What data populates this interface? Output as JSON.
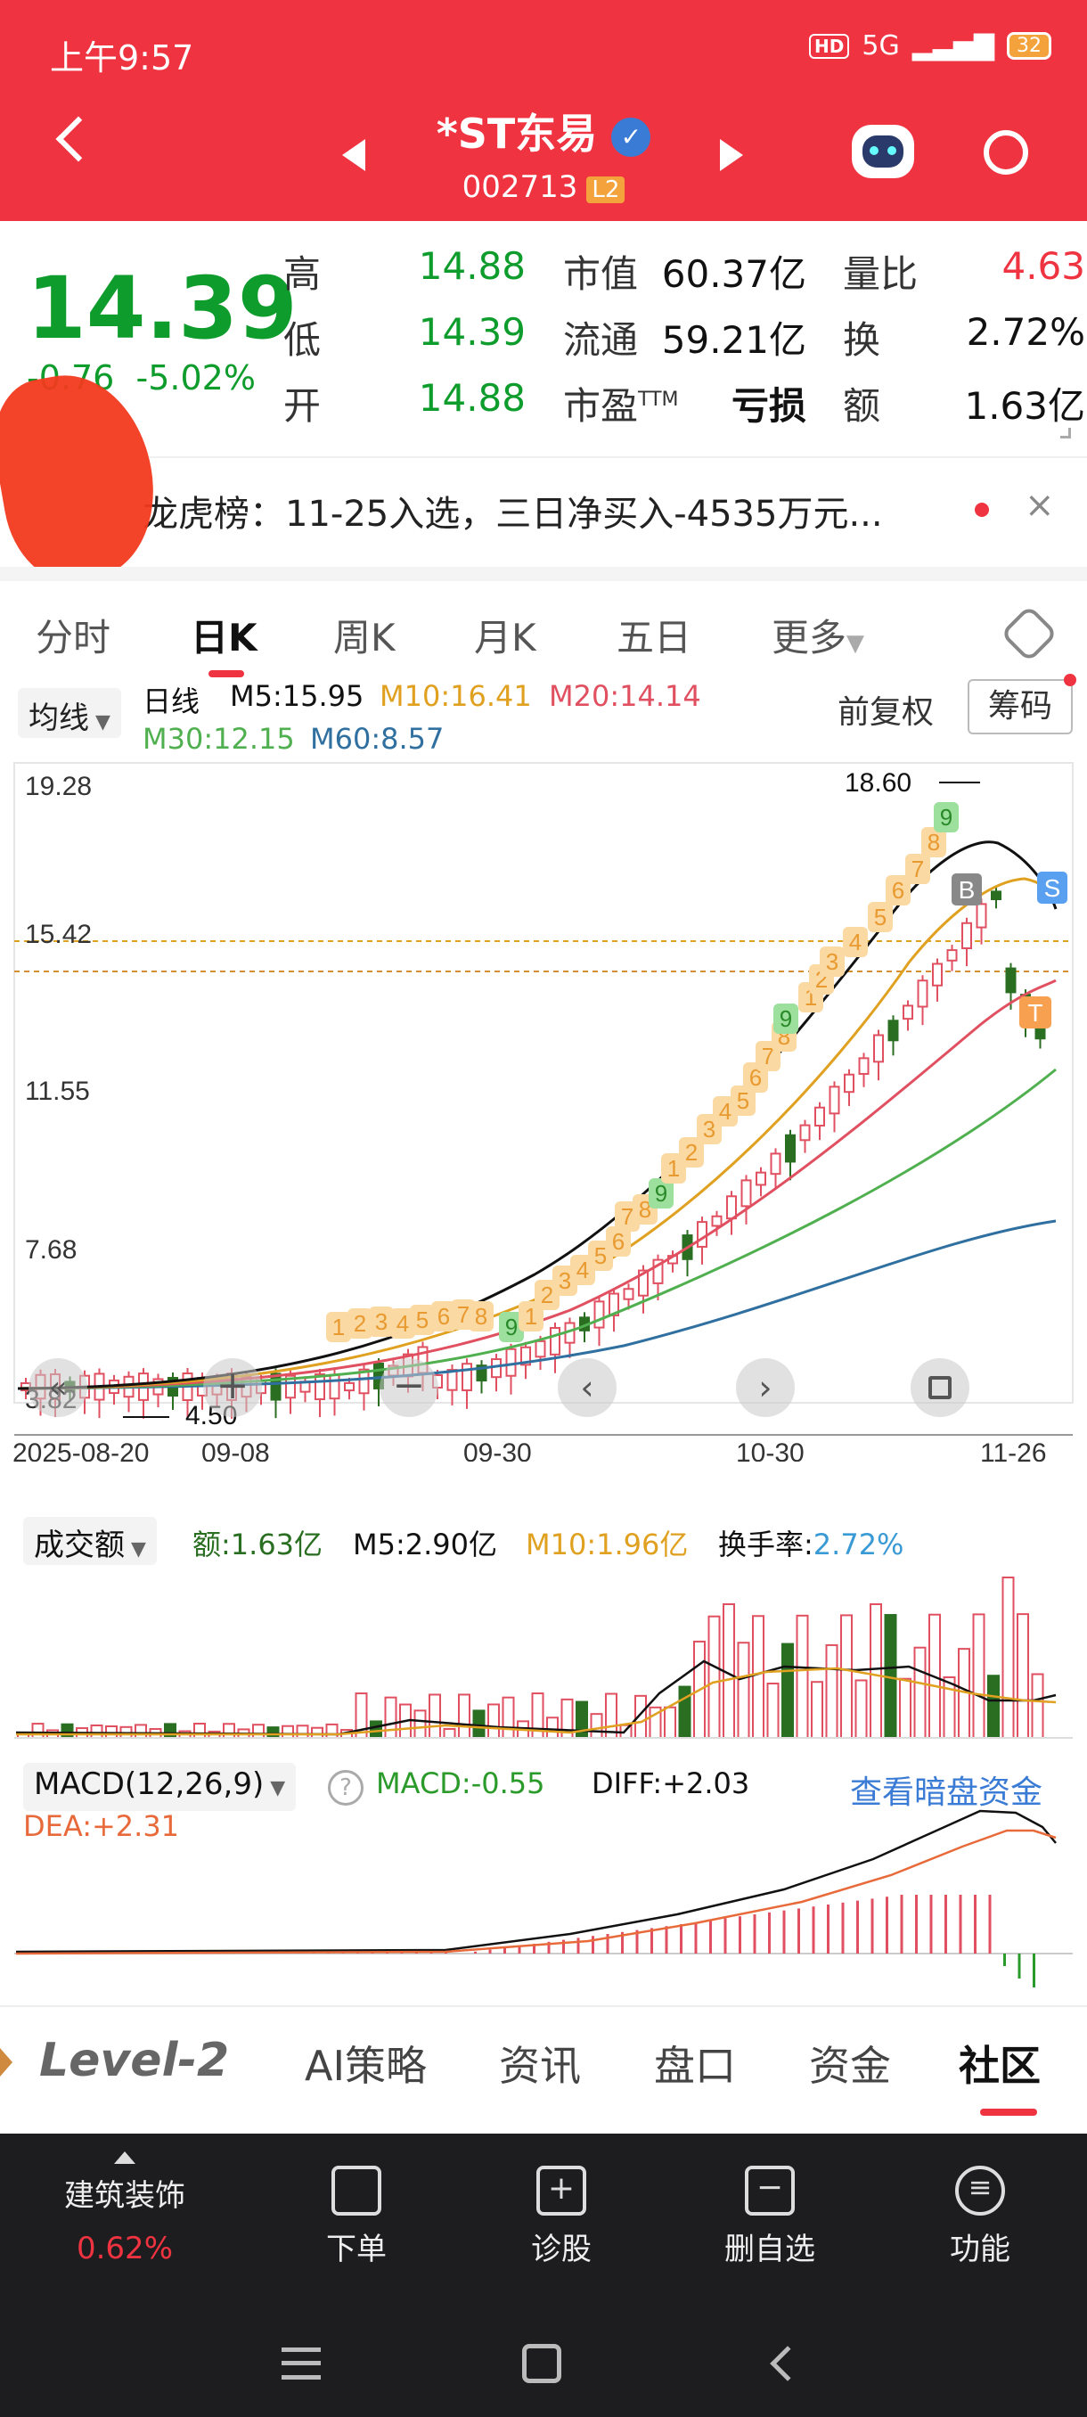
{
  "status": {
    "time": "上午9:57",
    "net": "5G",
    "hd": "HD",
    "battery": "32"
  },
  "header": {
    "title": "*ST东易",
    "code": "002713",
    "badge": "L2"
  },
  "quote": {
    "price": "14.39",
    "change": "-0.76",
    "change_pct": "-5.02%",
    "high_label": "高",
    "high": "14.88",
    "low_label": "低",
    "low": "14.39",
    "open_label": "开",
    "open": "14.88",
    "mcap_label": "市值",
    "mcap": "60.37亿",
    "float_label": "流通",
    "float": "59.21亿",
    "pe_label": "市盈",
    "pe_tm": "TTM",
    "pe": "亏损",
    "vr_label": "量比",
    "vr": "4.63",
    "turn_label": "换",
    "turn": "2.72%",
    "amt_label": "额",
    "amt": "1.63亿"
  },
  "notice": {
    "text": "龙虎榜：11-25入选，三日净买入-4535万元...",
    "prefix": "龙虎榜"
  },
  "tabs": [
    "分时",
    "日K",
    "周K",
    "月K",
    "五日",
    "更多"
  ],
  "kline": {
    "ma_label": "均线",
    "period": "日线",
    "m5": "M5:15.95",
    "m10": "M10:16.41",
    "m20": "M20:14.14",
    "m30": "M30:12.15",
    "m60": "M60:8.57",
    "adjust": "前复权",
    "chips": "筹码",
    "y_ticks": [
      "19.28",
      "15.42",
      "11.55",
      "7.68",
      "3.82"
    ],
    "x_ticks": [
      "2025-08-20",
      "09-08",
      "09-30",
      "10-30",
      "11-26"
    ],
    "high_mark": "18.60",
    "low_mark": "4.50",
    "buy_label": "B",
    "sell_label": "S",
    "t_label": "T"
  },
  "volume": {
    "selector": "成交额",
    "amt": "额:1.63亿",
    "m5": "M5:2.90亿",
    "m10": "M10:1.96亿",
    "turn_label": "换手率:",
    "turn": "2.72%"
  },
  "macd": {
    "selector": "MACD(12,26,9)",
    "macd": "MACD:-0.55",
    "diff": "DIFF:+2.03",
    "dea": "DEA:+2.31",
    "link": "查看暗盘资金"
  },
  "bottom_tabs": [
    "Level-2",
    "AI策略",
    "资讯",
    "盘口",
    "资金",
    "社区"
  ],
  "footer": {
    "sector": "建筑装饰",
    "sector_pct": "0.62%",
    "items": [
      "下单",
      "诊股",
      "删自选",
      "功能"
    ]
  },
  "colors": {
    "red": "#ef3340",
    "green": "#0e9c2c",
    "accent": "#3a7bd5"
  },
  "chart_data": {
    "type": "candlestick",
    "m5_line": "black",
    "m10_line": "#e0a020",
    "m20_line": "#e05060",
    "m30_line": "#50b050",
    "m60_line": "#3070a0"
  }
}
